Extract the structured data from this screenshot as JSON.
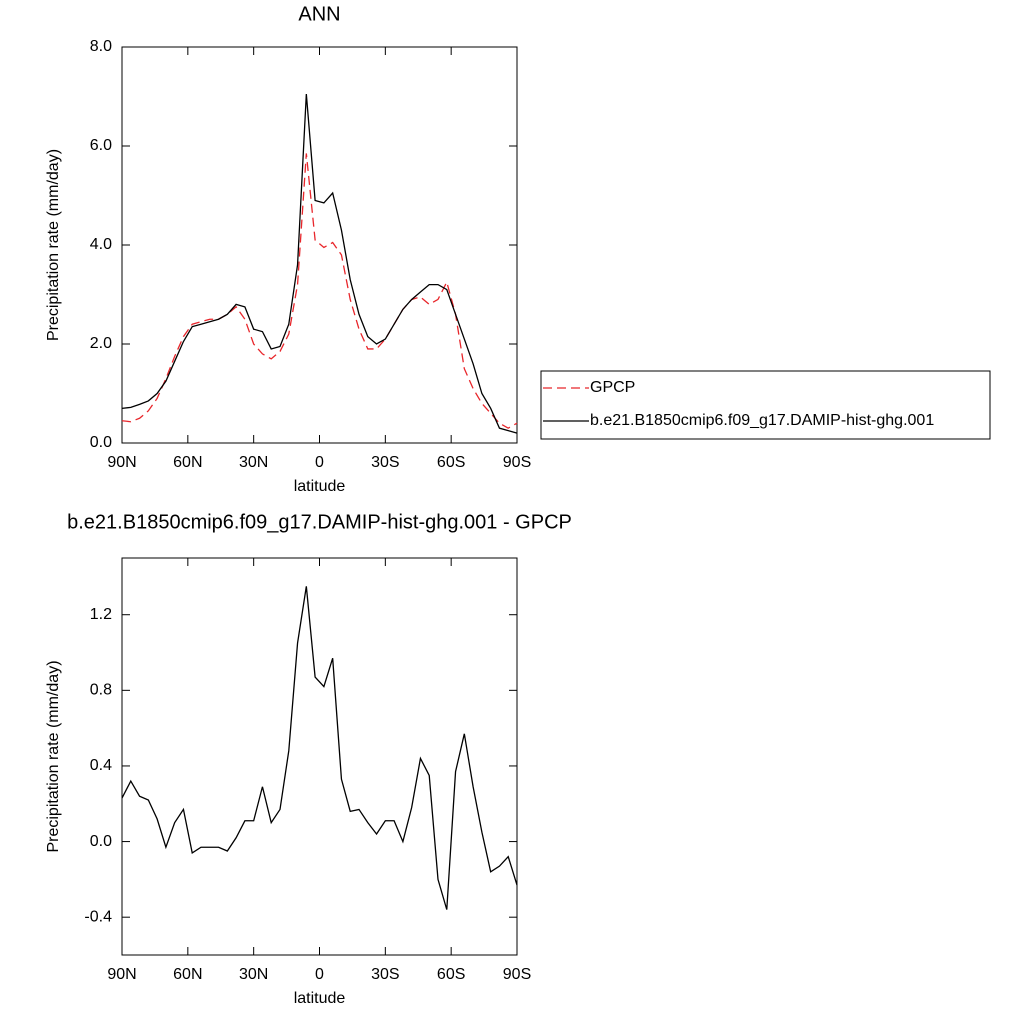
{
  "chart_data": [
    {
      "type": "line",
      "title": "ANN",
      "xlabel": "latitude",
      "ylabel": "Precipitation rate (mm/day)",
      "xlim": [
        90,
        -90
      ],
      "ylim": [
        0,
        8
      ],
      "xticks": [
        {
          "value": 90,
          "label": "90N"
        },
        {
          "value": 60,
          "label": "60N"
        },
        {
          "value": 30,
          "label": "30N"
        },
        0,
        {
          "value": -30,
          "label": "30S"
        },
        {
          "value": -60,
          "label": "60S"
        },
        {
          "value": -90,
          "label": "90S"
        }
      ],
      "yticks": [
        {
          "value": 0,
          "label": "0.0"
        },
        {
          "value": 2,
          "label": "2.0"
        },
        {
          "value": 4,
          "label": "4.0"
        },
        {
          "value": 6,
          "label": "6.0"
        },
        {
          "value": 8,
          "label": "8.0"
        }
      ],
      "legend": "right",
      "x": [
        90,
        86,
        82,
        78,
        74,
        70,
        66,
        62,
        58,
        54,
        50,
        46,
        42,
        38,
        34,
        30,
        26,
        22,
        18,
        14,
        10,
        6,
        2,
        -2,
        -6,
        -10,
        -14,
        -18,
        -22,
        -26,
        -30,
        -34,
        -38,
        -42,
        -46,
        -50,
        -54,
        -58,
        -62,
        -66,
        -70,
        -74,
        -78,
        -82,
        -86,
        -90
      ],
      "series": [
        {
          "name": "GPCP",
          "color": "#e8262b",
          "dashed": true,
          "values": [
            0.45,
            0.43,
            0.5,
            0.65,
            0.9,
            1.3,
            1.75,
            2.15,
            2.4,
            2.45,
            2.5,
            2.5,
            2.6,
            2.75,
            2.5,
            2.0,
            1.8,
            1.7,
            1.85,
            2.2,
            3.2,
            5.85,
            4.1,
            3.95,
            4.05,
            3.8,
            2.9,
            2.3,
            1.9,
            1.9,
            2.1,
            2.4,
            2.7,
            2.9,
            2.95,
            2.8,
            2.9,
            3.25,
            2.6,
            1.5,
            1.1,
            0.8,
            0.6,
            0.4,
            0.3,
            0.4
          ]
        },
        {
          "name": "b.e21.B1850cmip6.f09_g17.DAMIP-hist-ghg.001",
          "color": "#000000",
          "dashed": false,
          "values": [
            0.7,
            0.72,
            0.78,
            0.85,
            1.0,
            1.25,
            1.65,
            2.05,
            2.35,
            2.4,
            2.45,
            2.5,
            2.6,
            2.8,
            2.75,
            2.3,
            2.25,
            1.9,
            1.95,
            2.4,
            3.6,
            7.05,
            4.9,
            4.85,
            5.05,
            4.3,
            3.3,
            2.6,
            2.15,
            2.0,
            2.1,
            2.4,
            2.7,
            2.9,
            3.05,
            3.2,
            3.2,
            3.1,
            2.6,
            2.1,
            1.6,
            1.0,
            0.7,
            0.3,
            0.25,
            0.2
          ]
        }
      ]
    },
    {
      "type": "line",
      "title": "b.e21.B1850cmip6.f09_g17.DAMIP-hist-ghg.001 - GPCP",
      "xlabel": "latitude",
      "ylabel": "Precipitation rate (mm/day)",
      "xlim": [
        90,
        -90
      ],
      "ylim": [
        -0.6,
        1.5
      ],
      "xticks": [
        {
          "value": 90,
          "label": "90N"
        },
        {
          "value": 60,
          "label": "60N"
        },
        {
          "value": 30,
          "label": "30N"
        },
        0,
        {
          "value": -30,
          "label": "30S"
        },
        {
          "value": -60,
          "label": "60S"
        },
        {
          "value": -90,
          "label": "90S"
        }
      ],
      "yticks": [
        {
          "value": -0.4,
          "label": "-0.4"
        },
        {
          "value": 0,
          "label": "0.0"
        },
        {
          "value": 0.4,
          "label": "0.4"
        },
        {
          "value": 0.8,
          "label": "0.8"
        },
        {
          "value": 1.2,
          "label": "1.2"
        }
      ],
      "x": [
        90,
        86,
        82,
        78,
        74,
        70,
        66,
        62,
        58,
        54,
        50,
        46,
        42,
        38,
        34,
        30,
        26,
        22,
        18,
        14,
        10,
        6,
        2,
        -2,
        -6,
        -10,
        -14,
        -18,
        -22,
        -26,
        -30,
        -34,
        -38,
        -42,
        -46,
        -50,
        -54,
        -58,
        -62,
        -66,
        -70,
        -74,
        -78,
        -82,
        -86,
        -90
      ],
      "series": [
        {
          "color": "#000000",
          "dashed": false,
          "values": [
            0.23,
            0.32,
            0.24,
            0.22,
            0.12,
            -0.03,
            0.1,
            0.17,
            -0.06,
            -0.03,
            -0.03,
            -0.03,
            -0.05,
            0.02,
            0.11,
            0.11,
            0.29,
            0.1,
            0.17,
            0.48,
            1.05,
            1.35,
            0.87,
            0.82,
            0.97,
            0.33,
            0.16,
            0.17,
            0.1,
            0.04,
            0.11,
            0.11,
            0.0,
            0.18,
            0.44,
            0.35,
            -0.2,
            -0.36,
            0.37,
            0.57,
            0.29,
            0.05,
            -0.16,
            -0.13,
            -0.08,
            -0.23
          ]
        }
      ]
    }
  ]
}
